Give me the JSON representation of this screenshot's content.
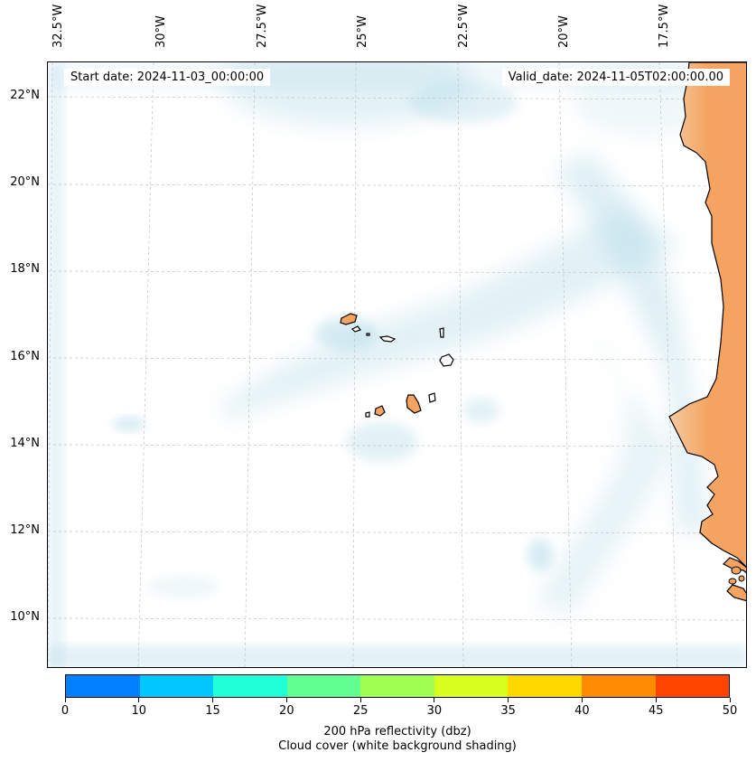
{
  "map": {
    "start_date": "Start date: 2024-11-03_00:00:00",
    "valid_date": "Valid_date: 2024-11-05T02:00:00.00",
    "longitude_labels": [
      "32.5°W",
      "30°W",
      "27.5°W",
      "25°W",
      "22.5°W",
      "20°W",
      "17.5°W"
    ],
    "latitude_labels": [
      "22°N",
      "20°N",
      "18°N",
      "16°N",
      "14°N",
      "12°N",
      "10°N"
    ],
    "land_color": "#f4a460",
    "cloud_color": "#add8e6"
  },
  "colorbar": {
    "ticks": [
      "0",
      "10",
      "15",
      "20",
      "25",
      "30",
      "35",
      "40",
      "45",
      "50"
    ],
    "colors": [
      "#0080ff",
      "#00c8ff",
      "#20ffd8",
      "#60ff90",
      "#a0ff50",
      "#d8ff20",
      "#ffd800",
      "#ff8c00",
      "#ff4500"
    ],
    "title_line1": "200 hPa reflectivity (dbz)",
    "title_line2": "Cloud cover (white background shading)"
  }
}
